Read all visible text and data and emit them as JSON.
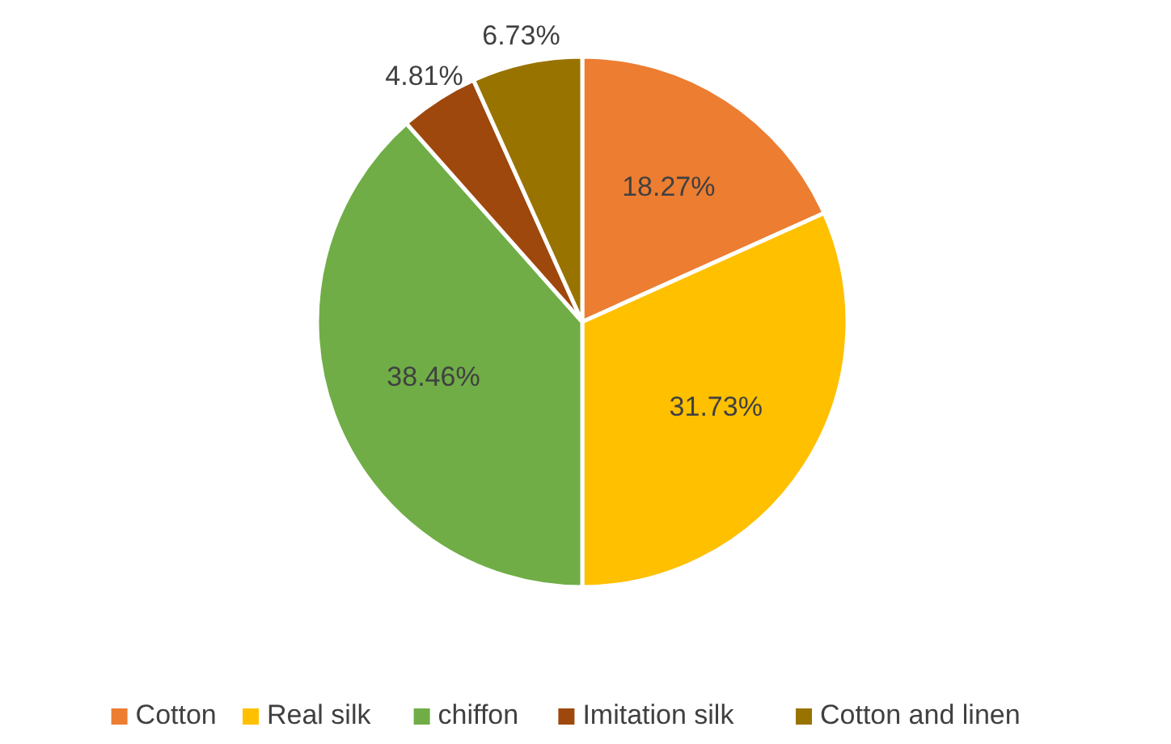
{
  "chart_data": {
    "type": "pie",
    "categories": [
      "Cotton",
      "Real silk",
      "chiffon",
      "Imitation silk",
      "Cotton and linen"
    ],
    "values": [
      18.27,
      31.73,
      38.46,
      4.81,
      6.73
    ],
    "colors": [
      "#ed7d31",
      "#ffc000",
      "#70ad47",
      "#9e480e",
      "#997300"
    ],
    "value_labels": [
      "18.27%",
      "31.73%",
      "38.46%",
      "4.81%",
      "6.73%"
    ],
    "legend": "bottom"
  }
}
